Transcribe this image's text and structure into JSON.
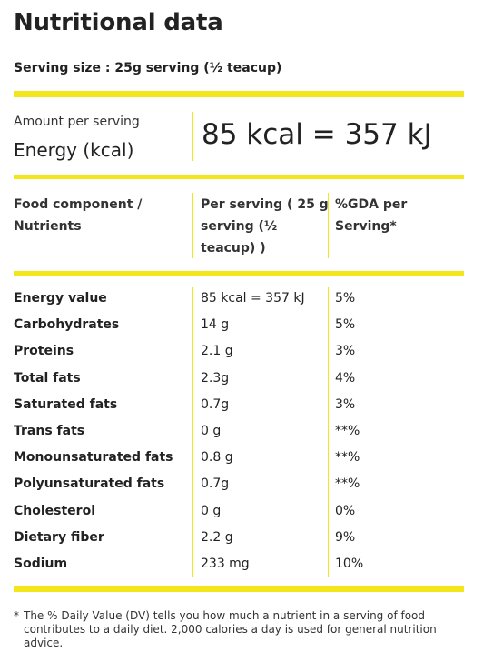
{
  "title": "Nutritional data",
  "serving_size": "Serving size : 25g serving (½ teacup)",
  "amount": {
    "label": "Amount per serving",
    "energy_label": "Energy (kcal)",
    "energy_value": "85 kcal = 357 kJ"
  },
  "headers": {
    "component": [
      "Food component /",
      "Nutrients"
    ],
    "per_serving": [
      "Per serving ( 25 g",
      "serving (½",
      "teacup) )"
    ],
    "gda": [
      "%GDA per",
      "Serving*"
    ]
  },
  "nutrients": [
    {
      "name": "Energy value",
      "amount": "85 kcal = 357 kJ",
      "gda": "5%"
    },
    {
      "name": "Carbohydrates",
      "amount": "14 g",
      "gda": "5%"
    },
    {
      "name": "Proteins",
      "amount": "2.1 g",
      "gda": "3%"
    },
    {
      "name": "Total fats",
      "amount": "2.3g",
      "gda": "4%"
    },
    {
      "name": "Saturated fats",
      "amount": "0.7g",
      "gda": "3%"
    },
    {
      "name": "Trans fats",
      "amount": "0 g",
      "gda": "**%"
    },
    {
      "name": "Monounsaturated fats",
      "amount": "0.8 g",
      "gda": "**%"
    },
    {
      "name": "Polyunsaturated fats",
      "amount": "0.7g",
      "gda": "**%"
    },
    {
      "name": "Cholesterol",
      "amount": "0 g",
      "gda": "0%"
    },
    {
      "name": "Dietary fiber",
      "amount": "2.2 g",
      "gda": "9%"
    },
    {
      "name": "Sodium",
      "amount": "233 mg",
      "gda": "10%"
    }
  ],
  "footnote": {
    "marker": "*",
    "text": "The % Daily Value (DV) tells you how much a nutrient in a serving of food contributes to a daily diet. 2,000 calories a day is used for general nutrition advice."
  },
  "colors": {
    "accent": "#f3e61b",
    "text": "#222222"
  }
}
